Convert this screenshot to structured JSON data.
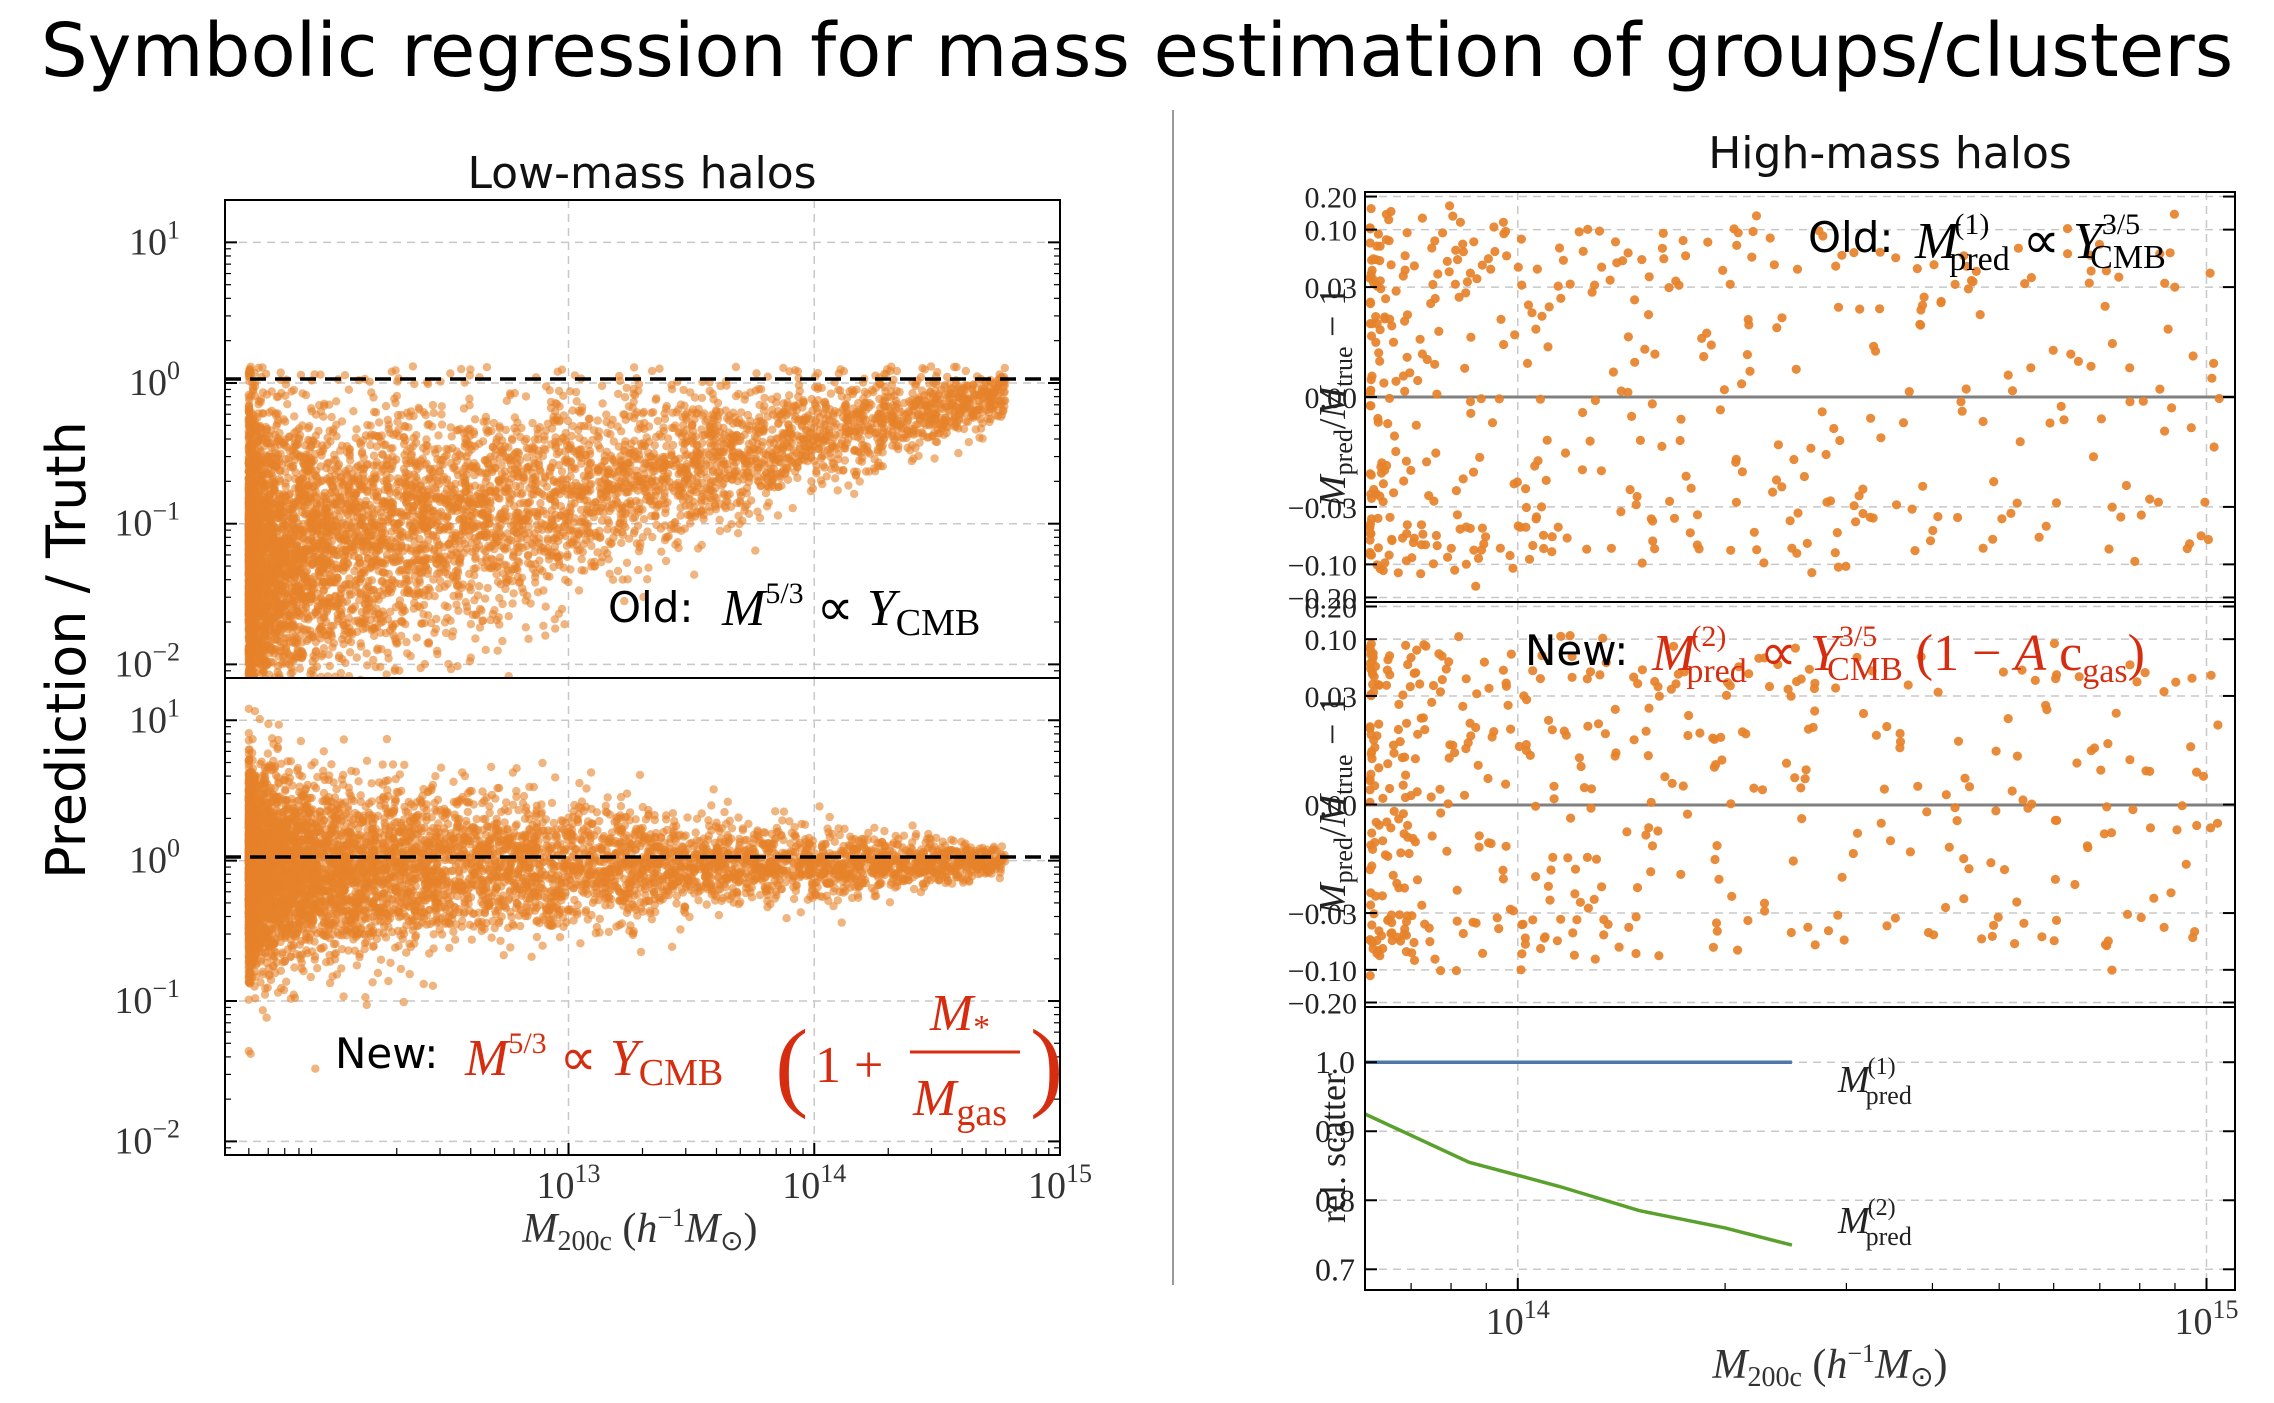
{
  "slide_title": "Symbolic regression for mass estimation of groups/clusters",
  "colors": {
    "scatter": "#e6822a",
    "dashed": "#000000",
    "zero_line": "#808080",
    "red_text": "#d62d10",
    "line_blue": "#4c78a8",
    "line_green": "#5aa02c",
    "grid": "#c8c8c8",
    "divider": "#999999"
  },
  "chart_data": [
    {
      "type": "scatter",
      "panel": "left-top",
      "title": "Low-mass halos",
      "ylabel": "Prediction / Truth",
      "yscale": "log",
      "ylim": [
        0.008,
        20
      ],
      "yticks": [
        "10^-2",
        "10^-1",
        "10^0",
        "10^1"
      ],
      "xscale": "log",
      "xlim": [
        400000000000.0,
        1000000000000000.0
      ],
      "reference_line": {
        "y": 1,
        "style": "dashed"
      },
      "legend": {
        "prefix": "Old:",
        "formula": "M^{5/3} ∝ Y_CMB"
      },
      "trend": {
        "x_start": 500000000000.0,
        "x_end": 600000000000000.0,
        "median_start": 0.05,
        "median_end": 0.85,
        "spread_start_dex": 0.55,
        "spread_end_dex": 0.08
      }
    },
    {
      "type": "scatter",
      "panel": "left-bottom",
      "yscale": "log",
      "ylim": [
        0.008,
        20
      ],
      "yticks": [
        "10^-2",
        "10^-1",
        "10^0",
        "10^1"
      ],
      "xscale": "log",
      "xlim": [
        400000000000.0,
        1000000000000000.0
      ],
      "xticks": [
        "10^13",
        "10^14",
        "10^15"
      ],
      "xlabel": "M_200c (h^-1 M_⊙)",
      "reference_line": {
        "y": 1,
        "style": "dashed"
      },
      "legend": {
        "prefix": "New:",
        "formula": "M^{5/3} ∝ Y_CMB (1 + M_* / M_gas)"
      },
      "trend": {
        "x_start": 500000000000.0,
        "x_end": 600000000000000.0,
        "median_start": 0.85,
        "median_end": 0.98,
        "spread_start_dex": 0.35,
        "spread_end_dex": 0.05
      }
    },
    {
      "type": "scatter",
      "panel": "right-top",
      "title": "High-mass halos",
      "ylabel": "M_pred / M_true − 1",
      "yscale": "symlog",
      "linthresh": 0.03,
      "ylim": [
        -0.22,
        0.22
      ],
      "yticks": [
        0.2,
        0.1,
        0.03,
        0.0,
        -0.03,
        -0.1,
        -0.2
      ],
      "ytick_labels": [
        "0.20",
        "0.10",
        "0.03",
        "0.00",
        "−0.03",
        "−0.10",
        "−0.20"
      ],
      "xscale": "log",
      "xlim": [
        60000000000000.0,
        1100000000000000.0
      ],
      "reference_line": {
        "y": 0,
        "style": "solid"
      },
      "legend": {
        "prefix": "Old:",
        "formula": "M_pred^(1) ∝ Y_CMB^{3/5}"
      },
      "trend": {
        "n": 480,
        "scatter_sd": 0.055
      }
    },
    {
      "type": "scatter",
      "panel": "right-middle",
      "ylabel": "M_pred / M_true − 1",
      "yscale": "symlog",
      "linthresh": 0.03,
      "ylim": [
        -0.22,
        0.22
      ],
      "yticks": [
        0.2,
        0.1,
        0.03,
        0.0,
        -0.03,
        -0.1,
        -0.2
      ],
      "ytick_labels": [
        "0.20",
        "0.10",
        "0.03",
        "0.00",
        "−0.03",
        "−0.10",
        "−0.20"
      ],
      "xscale": "log",
      "xlim": [
        60000000000000.0,
        1100000000000000.0
      ],
      "reference_line": {
        "y": 0,
        "style": "solid"
      },
      "legend": {
        "prefix": "New:",
        "formula": "M_pred^(2) ∝ Y_CMB^{3/5} (1 − A c_gas)"
      },
      "trend": {
        "n": 480,
        "scatter_sd": 0.045
      }
    },
    {
      "type": "line",
      "panel": "right-bottom",
      "ylabel": "rel. scatter",
      "ylim": [
        0.67,
        1.08
      ],
      "yticks": [
        0.7,
        0.8,
        0.9,
        1.0
      ],
      "ytick_labels": [
        "0.7",
        "0.8",
        "0.9",
        "1.0"
      ],
      "xscale": "log",
      "xlim": [
        60000000000000.0,
        1100000000000000.0
      ],
      "xticks": [
        "10^14",
        "10^15"
      ],
      "xlabel": "M_200c (h^-1 M_⊙)",
      "series": [
        {
          "name": "M_pred^(1)",
          "x": [
            60000000000000.0,
            85000000000000.0,
            115000000000000.0,
            150000000000000.0,
            200000000000000.0,
            250000000000000.0
          ],
          "y": [
            1.0,
            1.0,
            1.0,
            1.0,
            1.0,
            1.0
          ]
        },
        {
          "name": "M_pred^(2)",
          "x": [
            60000000000000.0,
            85000000000000.0,
            115000000000000.0,
            150000000000000.0,
            200000000000000.0,
            250000000000000.0
          ],
          "y": [
            0.925,
            0.855,
            0.82,
            0.785,
            0.76,
            0.735
          ]
        }
      ]
    }
  ]
}
